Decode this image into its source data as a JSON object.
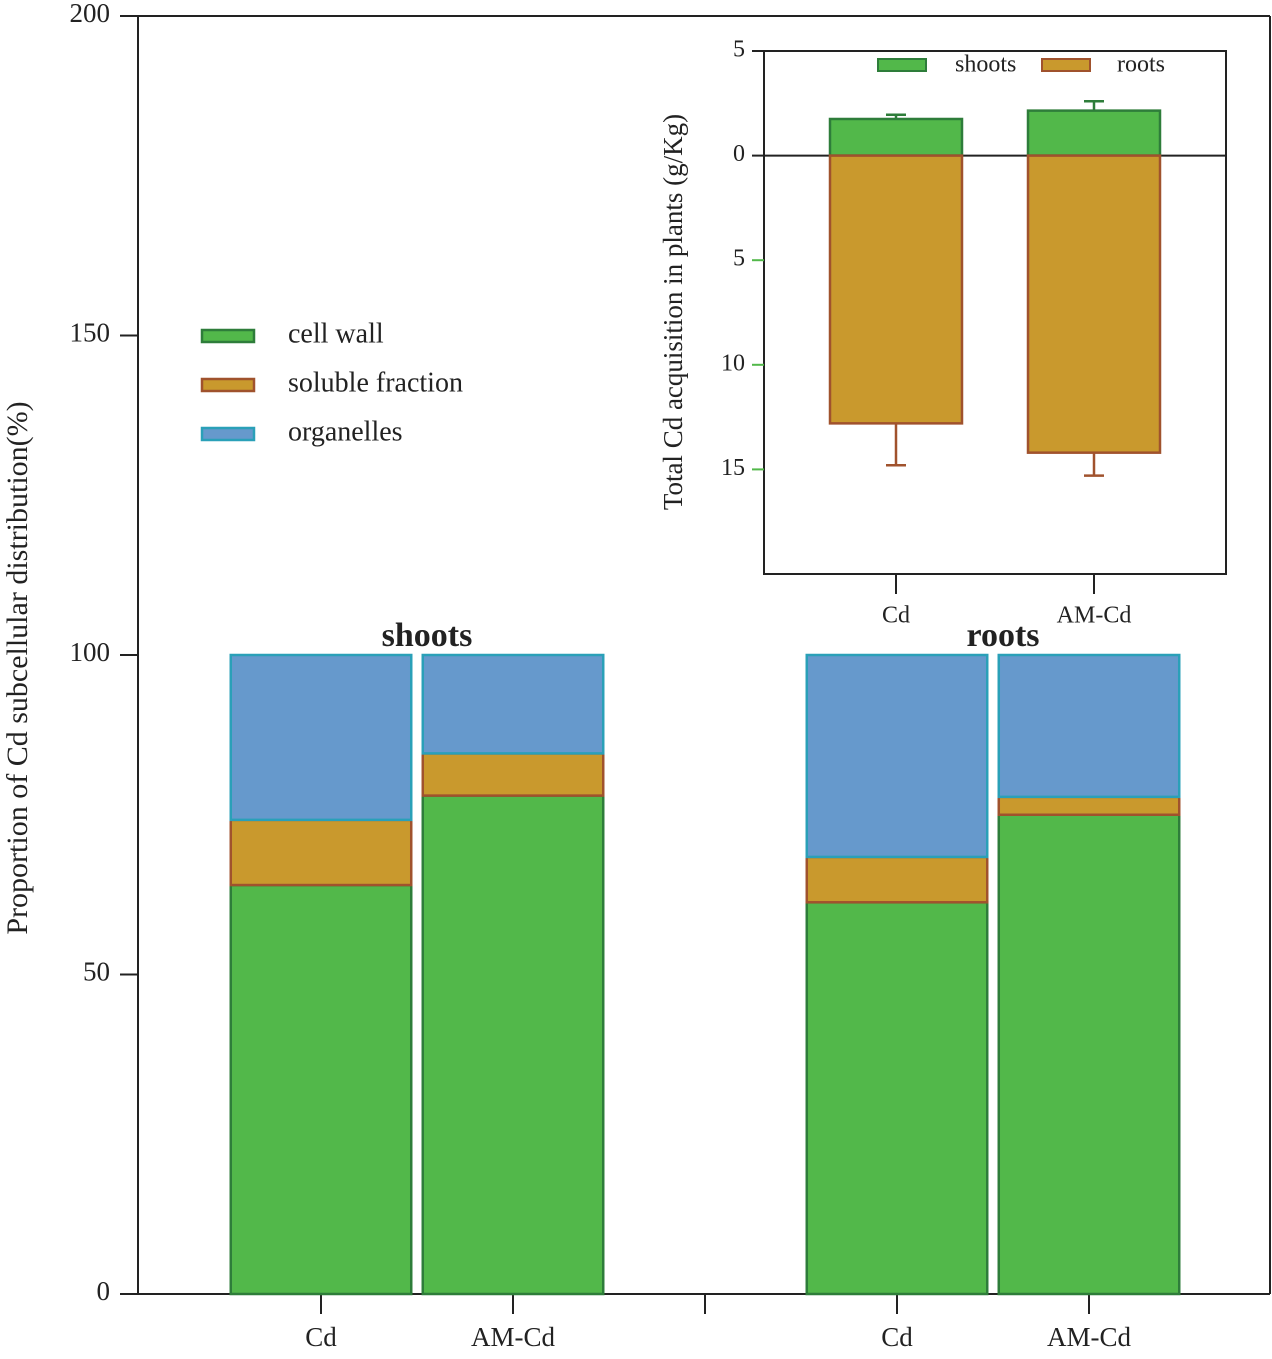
{
  "chart_data": [
    {
      "type": "stacked_bar",
      "ylabel": "Proportion of Cd subcellular distribution(%)",
      "categories": [
        "Cd",
        "AM-Cd",
        null,
        "Cd",
        "AM-Cd"
      ],
      "groups": [
        "shoots",
        "roots"
      ],
      "series": [
        {
          "name": "cell wall",
          "color": "#52b84a",
          "edge": "#2e7d3a",
          "values": [
            64,
            78,
            null,
            61.3,
            75
          ]
        },
        {
          "name": "soluble fraction",
          "color": "#c9992d",
          "edge": "#a0522d",
          "values": [
            10.2,
            6.6,
            null,
            7.1,
            2.8
          ]
        },
        {
          "name": "organelles",
          "color": "#6699cc",
          "edge": "#2aa0b8",
          "values": [
            25.8,
            15.4,
            null,
            31.6,
            22.2
          ]
        }
      ],
      "ylim": [
        0,
        200
      ],
      "yticks": [
        0,
        50,
        100,
        150,
        200
      ]
    },
    {
      "type": "bar",
      "ylabel": "Total Cd acquisition in plants (g/Kg)",
      "categories": [
        "Cd",
        "AM-Cd"
      ],
      "series": [
        {
          "name": "shoots",
          "color": "#52b84a",
          "edge": "#2e7d3a",
          "values": [
            1.75,
            2.15
          ],
          "errors": [
            0.2,
            0.45
          ]
        },
        {
          "name": "roots",
          "color": "#c9992d",
          "edge": "#a0522d",
          "values": [
            -12.8,
            -14.2
          ],
          "errors": [
            2.0,
            1.1
          ]
        }
      ],
      "ylim": [
        -20,
        5
      ],
      "yticks": [
        5,
        0,
        {
          "value": -5,
          "label": "5"
        },
        {
          "value": -10,
          "label": "10"
        },
        {
          "value": -15,
          "label": "15"
        }
      ]
    }
  ]
}
